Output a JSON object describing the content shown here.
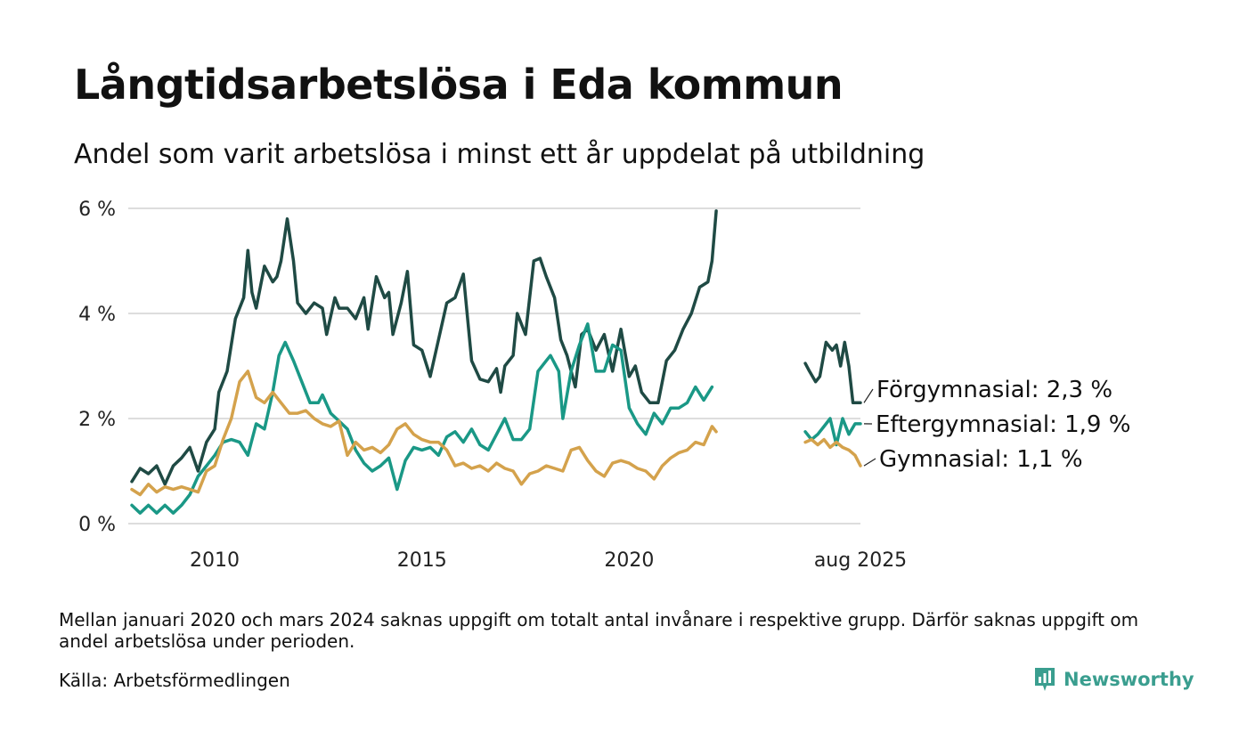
{
  "title": "Långtidsarbetslösa i Eda kommun",
  "subtitle": "Andel som varit arbetslösa i minst ett år uppdelat på utbildning",
  "footnote": "Mellan januari 2020 och mars 2024 saknas uppgift om totalt antal invånare i respektive grupp. Därför saknas uppgift om andel arbetslösa under perioden.",
  "source": "Källa: Arbetsförmedlingen",
  "brand": "Newsworthy",
  "colors": {
    "forgymnasial": "#1f4a44",
    "eftergymnasial": "#1a9886",
    "gymnasial": "#d4a24c",
    "grid": "#dddddd",
    "brand": "#3a9e8f"
  },
  "chart_data": {
    "type": "line",
    "x_unit": "year",
    "xlim": [
      2008.0,
      2025.58
    ],
    "ylim": [
      0,
      6
    ],
    "yticks": [
      {
        "value": 0,
        "label": "0 %"
      },
      {
        "value": 2,
        "label": "2 %"
      },
      {
        "value": 4,
        "label": "4 %"
      },
      {
        "value": 6,
        "label": "6 %"
      }
    ],
    "xticks": [
      {
        "value": 2010,
        "label": "2010"
      },
      {
        "value": 2015,
        "label": "2015"
      },
      {
        "value": 2020,
        "label": "2020"
      },
      {
        "value": 2025.58,
        "label": "aug 2025"
      }
    ],
    "grid": true,
    "series": [
      {
        "name": "Förgymnasial",
        "key": "forgymnasial",
        "end_label": "Förgymnasial: 2,3 %",
        "segments": [
          [
            [
              2008.0,
              0.8
            ],
            [
              2008.2,
              1.05
            ],
            [
              2008.4,
              0.95
            ],
            [
              2008.6,
              1.1
            ],
            [
              2008.8,
              0.75
            ],
            [
              2009.0,
              1.1
            ],
            [
              2009.2,
              1.25
            ],
            [
              2009.4,
              1.45
            ],
            [
              2009.6,
              1.0
            ],
            [
              2009.8,
              1.55
            ],
            [
              2010.0,
              1.8
            ],
            [
              2010.1,
              2.5
            ],
            [
              2010.3,
              2.9
            ],
            [
              2010.5,
              3.9
            ],
            [
              2010.7,
              4.3
            ],
            [
              2010.8,
              5.2
            ],
            [
              2010.9,
              4.4
            ],
            [
              2011.0,
              4.1
            ],
            [
              2011.2,
              4.9
            ],
            [
              2011.4,
              4.6
            ],
            [
              2011.5,
              4.7
            ],
            [
              2011.6,
              5.0
            ],
            [
              2011.75,
              5.8
            ],
            [
              2011.9,
              5.0
            ],
            [
              2012.0,
              4.2
            ],
            [
              2012.2,
              4.0
            ],
            [
              2012.4,
              4.2
            ],
            [
              2012.6,
              4.1
            ],
            [
              2012.7,
              3.6
            ],
            [
              2012.9,
              4.3
            ],
            [
              2013.0,
              4.1
            ],
            [
              2013.2,
              4.1
            ],
            [
              2013.4,
              3.9
            ],
            [
              2013.6,
              4.3
            ],
            [
              2013.7,
              3.7
            ],
            [
              2013.9,
              4.7
            ],
            [
              2014.1,
              4.3
            ],
            [
              2014.2,
              4.4
            ],
            [
              2014.3,
              3.6
            ],
            [
              2014.5,
              4.2
            ],
            [
              2014.65,
              4.8
            ],
            [
              2014.8,
              3.4
            ],
            [
              2015.0,
              3.3
            ],
            [
              2015.2,
              2.8
            ],
            [
              2015.4,
              3.5
            ],
            [
              2015.6,
              4.2
            ],
            [
              2015.8,
              4.3
            ],
            [
              2016.0,
              4.75
            ],
            [
              2016.2,
              3.1
            ],
            [
              2016.4,
              2.75
            ],
            [
              2016.6,
              2.7
            ],
            [
              2016.8,
              2.95
            ],
            [
              2016.9,
              2.5
            ],
            [
              2017.0,
              3.0
            ],
            [
              2017.2,
              3.2
            ],
            [
              2017.3,
              4.0
            ],
            [
              2017.5,
              3.6
            ],
            [
              2017.7,
              5.0
            ],
            [
              2017.85,
              5.05
            ],
            [
              2018.0,
              4.7
            ],
            [
              2018.2,
              4.3
            ],
            [
              2018.35,
              3.5
            ],
            [
              2018.5,
              3.2
            ],
            [
              2018.7,
              2.6
            ],
            [
              2018.85,
              3.6
            ],
            [
              2019.0,
              3.7
            ],
            [
              2019.2,
              3.3
            ],
            [
              2019.4,
              3.6
            ],
            [
              2019.6,
              2.9
            ],
            [
              2019.8,
              3.7
            ],
            [
              2020.0,
              2.8
            ],
            [
              2020.15,
              3.0
            ],
            [
              2020.3,
              2.5
            ],
            [
              2020.5,
              2.3
            ],
            [
              2020.7,
              2.3
            ],
            [
              2020.9,
              3.1
            ],
            [
              2021.1,
              3.3
            ],
            [
              2021.3,
              3.7
            ],
            [
              2021.5,
              4.0
            ],
            [
              2021.7,
              4.5
            ],
            [
              2021.9,
              4.6
            ],
            [
              2022.0,
              5.0
            ],
            [
              2022.1,
              5.95
            ]
          ],
          [
            [
              2024.25,
              3.05
            ],
            [
              2024.35,
              2.9
            ],
            [
              2024.5,
              2.7
            ],
            [
              2024.6,
              2.8
            ],
            [
              2024.75,
              3.45
            ],
            [
              2024.9,
              3.3
            ],
            [
              2025.0,
              3.4
            ],
            [
              2025.1,
              3.0
            ],
            [
              2025.2,
              3.45
            ],
            [
              2025.3,
              3.0
            ],
            [
              2025.4,
              2.3
            ],
            [
              2025.58,
              2.3
            ]
          ]
        ]
      },
      {
        "name": "Eftergymnasial",
        "key": "eftergymnasial",
        "end_label": "Eftergymnasial: 1,9 %",
        "segments": [
          [
            [
              2008.0,
              0.35
            ],
            [
              2008.2,
              0.2
            ],
            [
              2008.4,
              0.35
            ],
            [
              2008.6,
              0.2
            ],
            [
              2008.8,
              0.35
            ],
            [
              2009.0,
              0.2
            ],
            [
              2009.2,
              0.35
            ],
            [
              2009.4,
              0.55
            ],
            [
              2009.6,
              0.9
            ],
            [
              2009.8,
              1.1
            ],
            [
              2010.0,
              1.3
            ],
            [
              2010.2,
              1.55
            ],
            [
              2010.4,
              1.6
            ],
            [
              2010.6,
              1.55
            ],
            [
              2010.8,
              1.3
            ],
            [
              2011.0,
              1.9
            ],
            [
              2011.2,
              1.8
            ],
            [
              2011.4,
              2.5
            ],
            [
              2011.55,
              3.2
            ],
            [
              2011.7,
              3.45
            ],
            [
              2011.9,
              3.1
            ],
            [
              2012.1,
              2.7
            ],
            [
              2012.3,
              2.3
            ],
            [
              2012.5,
              2.3
            ],
            [
              2012.6,
              2.45
            ],
            [
              2012.8,
              2.1
            ],
            [
              2013.0,
              1.95
            ],
            [
              2013.2,
              1.8
            ],
            [
              2013.4,
              1.4
            ],
            [
              2013.6,
              1.15
            ],
            [
              2013.8,
              1.0
            ],
            [
              2014.0,
              1.1
            ],
            [
              2014.2,
              1.25
            ],
            [
              2014.4,
              0.65
            ],
            [
              2014.6,
              1.2
            ],
            [
              2014.8,
              1.45
            ],
            [
              2015.0,
              1.4
            ],
            [
              2015.2,
              1.45
            ],
            [
              2015.4,
              1.3
            ],
            [
              2015.6,
              1.65
            ],
            [
              2015.8,
              1.75
            ],
            [
              2016.0,
              1.55
            ],
            [
              2016.2,
              1.8
            ],
            [
              2016.4,
              1.5
            ],
            [
              2016.6,
              1.4
            ],
            [
              2016.8,
              1.7
            ],
            [
              2017.0,
              2.0
            ],
            [
              2017.2,
              1.6
            ],
            [
              2017.4,
              1.6
            ],
            [
              2017.6,
              1.8
            ],
            [
              2017.8,
              2.9
            ],
            [
              2018.0,
              3.1
            ],
            [
              2018.1,
              3.2
            ],
            [
              2018.3,
              2.9
            ],
            [
              2018.4,
              2.0
            ],
            [
              2018.6,
              2.9
            ],
            [
              2018.8,
              3.4
            ],
            [
              2019.0,
              3.8
            ],
            [
              2019.2,
              2.9
            ],
            [
              2019.4,
              2.9
            ],
            [
              2019.6,
              3.4
            ],
            [
              2019.8,
              3.3
            ],
            [
              2020.0,
              2.2
            ],
            [
              2020.2,
              1.9
            ],
            [
              2020.4,
              1.7
            ],
            [
              2020.6,
              2.1
            ],
            [
              2020.8,
              1.9
            ],
            [
              2021.0,
              2.2
            ],
            [
              2021.2,
              2.2
            ],
            [
              2021.4,
              2.3
            ],
            [
              2021.6,
              2.6
            ],
            [
              2021.8,
              2.35
            ],
            [
              2022.0,
              2.6
            ]
          ],
          [
            [
              2024.25,
              1.75
            ],
            [
              2024.4,
              1.6
            ],
            [
              2024.55,
              1.7
            ],
            [
              2024.7,
              1.85
            ],
            [
              2024.85,
              2.0
            ],
            [
              2025.0,
              1.5
            ],
            [
              2025.15,
              2.0
            ],
            [
              2025.3,
              1.7
            ],
            [
              2025.45,
              1.9
            ],
            [
              2025.58,
              1.9
            ]
          ]
        ]
      },
      {
        "name": "Gymnasial",
        "key": "gymnasial",
        "end_label": "Gymnasial: 1,1 %",
        "segments": [
          [
            [
              2008.0,
              0.65
            ],
            [
              2008.2,
              0.55
            ],
            [
              2008.4,
              0.75
            ],
            [
              2008.6,
              0.6
            ],
            [
              2008.8,
              0.7
            ],
            [
              2009.0,
              0.65
            ],
            [
              2009.2,
              0.7
            ],
            [
              2009.4,
              0.65
            ],
            [
              2009.6,
              0.6
            ],
            [
              2009.8,
              1.0
            ],
            [
              2010.0,
              1.1
            ],
            [
              2010.2,
              1.6
            ],
            [
              2010.4,
              2.0
            ],
            [
              2010.6,
              2.7
            ],
            [
              2010.8,
              2.9
            ],
            [
              2011.0,
              2.4
            ],
            [
              2011.2,
              2.3
            ],
            [
              2011.4,
              2.5
            ],
            [
              2011.6,
              2.3
            ],
            [
              2011.8,
              2.1
            ],
            [
              2012.0,
              2.1
            ],
            [
              2012.2,
              2.15
            ],
            [
              2012.4,
              2.0
            ],
            [
              2012.6,
              1.9
            ],
            [
              2012.8,
              1.85
            ],
            [
              2013.0,
              1.95
            ],
            [
              2013.2,
              1.3
            ],
            [
              2013.4,
              1.55
            ],
            [
              2013.6,
              1.4
            ],
            [
              2013.8,
              1.45
            ],
            [
              2014.0,
              1.35
            ],
            [
              2014.2,
              1.5
            ],
            [
              2014.4,
              1.8
            ],
            [
              2014.6,
              1.9
            ],
            [
              2014.8,
              1.7
            ],
            [
              2015.0,
              1.6
            ],
            [
              2015.2,
              1.55
            ],
            [
              2015.4,
              1.55
            ],
            [
              2015.6,
              1.4
            ],
            [
              2015.8,
              1.1
            ],
            [
              2016.0,
              1.15
            ],
            [
              2016.2,
              1.05
            ],
            [
              2016.4,
              1.1
            ],
            [
              2016.6,
              1.0
            ],
            [
              2016.8,
              1.15
            ],
            [
              2017.0,
              1.05
            ],
            [
              2017.2,
              1.0
            ],
            [
              2017.4,
              0.75
            ],
            [
              2017.6,
              0.95
            ],
            [
              2017.8,
              1.0
            ],
            [
              2018.0,
              1.1
            ],
            [
              2018.2,
              1.05
            ],
            [
              2018.4,
              1.0
            ],
            [
              2018.6,
              1.4
            ],
            [
              2018.8,
              1.45
            ],
            [
              2019.0,
              1.2
            ],
            [
              2019.2,
              1.0
            ],
            [
              2019.4,
              0.9
            ],
            [
              2019.6,
              1.15
            ],
            [
              2019.8,
              1.2
            ],
            [
              2020.0,
              1.15
            ],
            [
              2020.2,
              1.05
            ],
            [
              2020.4,
              1.0
            ],
            [
              2020.6,
              0.85
            ],
            [
              2020.8,
              1.1
            ],
            [
              2021.0,
              1.25
            ],
            [
              2021.2,
              1.35
            ],
            [
              2021.4,
              1.4
            ],
            [
              2021.6,
              1.55
            ],
            [
              2021.8,
              1.5
            ],
            [
              2022.0,
              1.85
            ],
            [
              2022.1,
              1.75
            ]
          ],
          [
            [
              2024.25,
              1.55
            ],
            [
              2024.4,
              1.6
            ],
            [
              2024.55,
              1.5
            ],
            [
              2024.7,
              1.6
            ],
            [
              2024.85,
              1.45
            ],
            [
              2025.0,
              1.55
            ],
            [
              2025.15,
              1.45
            ],
            [
              2025.3,
              1.4
            ],
            [
              2025.45,
              1.3
            ],
            [
              2025.58,
              1.1
            ]
          ]
        ]
      }
    ]
  }
}
